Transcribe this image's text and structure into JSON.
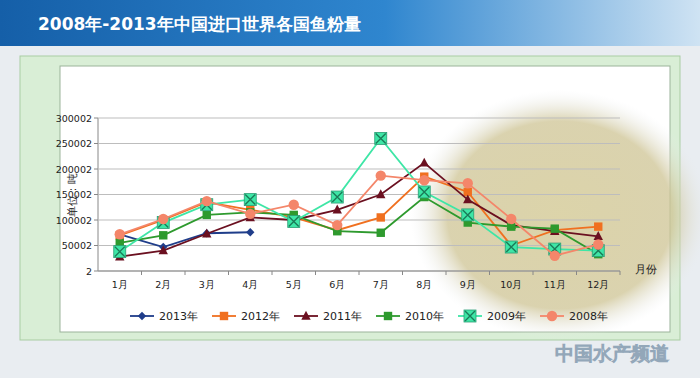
{
  "chart_data": {
    "type": "line",
    "title": "2008年-2013年中国进口世界各国鱼粉量",
    "y_label": "单位：吨",
    "x_label": "月份",
    "annotations": [
      "中国水产频道"
    ],
    "categories": [
      "1月",
      "2月",
      "3月",
      "4月",
      "5月",
      "6月",
      "7月",
      "8月",
      "9月",
      "10月",
      "11月",
      "12月"
    ],
    "series": [
      {
        "name": "2013年",
        "color": "#1f3d8a",
        "marker": "diamond",
        "values": [
          72000,
          47000,
          74000,
          76000,
          null,
          null,
          null,
          null,
          null,
          null,
          null,
          null
        ]
      },
      {
        "name": "2012年",
        "color": "#f07020",
        "marker": "square",
        "values": [
          70000,
          100000,
          135000,
          120000,
          105000,
          80000,
          105000,
          185000,
          155000,
          50000,
          80000,
          87000
        ]
      },
      {
        "name": "2011年",
        "color": "#6b1020",
        "marker": "triangle",
        "values": [
          28000,
          40000,
          73000,
          105000,
          100000,
          120000,
          150000,
          212000,
          140000,
          90000,
          78000,
          68000
        ]
      },
      {
        "name": "2010年",
        "color": "#2e9a2e",
        "marker": "square",
        "values": [
          55000,
          70000,
          110000,
          115000,
          110000,
          78000,
          75000,
          145000,
          95000,
          87000,
          83000,
          33000
        ]
      },
      {
        "name": "2009年",
        "color": "#3ee6a6",
        "marker": "x",
        "values": [
          38000,
          95000,
          130000,
          140000,
          97000,
          145000,
          260000,
          155000,
          110000,
          47000,
          43000,
          40000
        ]
      },
      {
        "name": "2008年",
        "color": "#f4866a",
        "marker": "circle",
        "values": [
          72000,
          102000,
          137000,
          112000,
          130000,
          90000,
          187000,
          178000,
          172000,
          102000,
          30000,
          52000
        ]
      }
    ],
    "ylim": [
      2,
      300002
    ],
    "yticks": [
      2,
      50002,
      100002,
      150002,
      200002,
      250002,
      300002
    ],
    "grid": true,
    "legend": "bottom"
  }
}
